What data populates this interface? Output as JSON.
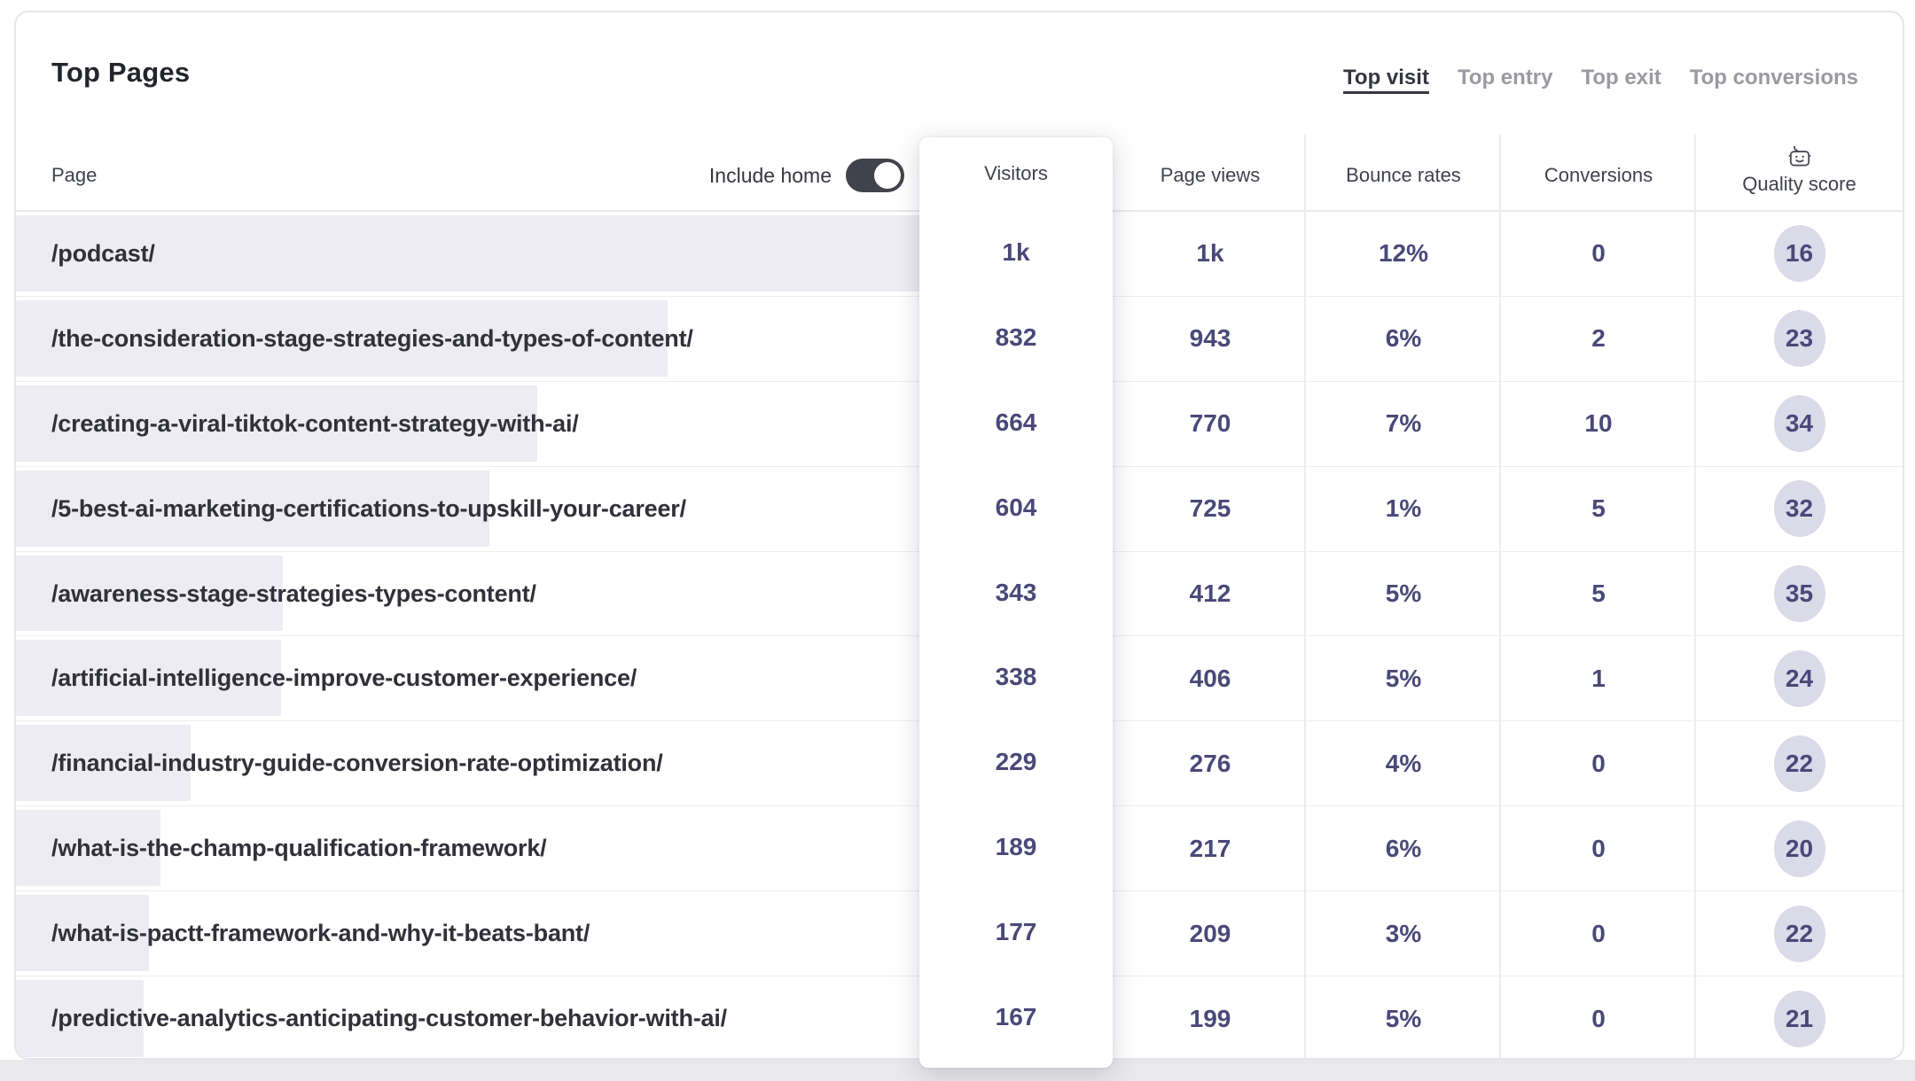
{
  "header": {
    "title": "Top Pages",
    "tabs": [
      {
        "label": "Top visit",
        "active": true
      },
      {
        "label": "Top entry",
        "active": false
      },
      {
        "label": "Top exit",
        "active": false
      },
      {
        "label": "Top conversions",
        "active": false
      }
    ]
  },
  "table": {
    "page_column_label": "Page",
    "include_home_label": "Include home",
    "include_home_toggle_state": "on",
    "columns": [
      "Visitors",
      "Page views",
      "Bounce rates",
      "Conversions",
      "Quality score"
    ],
    "quality_score_header_icon": "robot-icon",
    "rows": [
      {
        "page": "/podcast/",
        "visitors": "1k",
        "page_views": "1k",
        "bounce_rate": "12%",
        "conversions": "0",
        "quality_score": "16",
        "bar_pct": 1.0
      },
      {
        "page": "/the-consideration-stage-strategies-and-types-of-content/",
        "visitors": "832",
        "page_views": "943",
        "bounce_rate": "6%",
        "conversions": "2",
        "quality_score": "23",
        "bar_pct": 0.72
      },
      {
        "page": "/creating-a-viral-tiktok-content-strategy-with-ai/",
        "visitors": "664",
        "page_views": "770",
        "bounce_rate": "7%",
        "conversions": "10",
        "quality_score": "34",
        "bar_pct": 0.576
      },
      {
        "page": "/5-best-ai-marketing-certifications-to-upskill-your-career/",
        "visitors": "604",
        "page_views": "725",
        "bounce_rate": "1%",
        "conversions": "5",
        "quality_score": "32",
        "bar_pct": 0.523
      },
      {
        "page": "/awareness-stage-strategies-types-content/",
        "visitors": "343",
        "page_views": "412",
        "bounce_rate": "5%",
        "conversions": "5",
        "quality_score": "35",
        "bar_pct": 0.295
      },
      {
        "page": "/artificial-intelligence-improve-customer-experience/",
        "visitors": "338",
        "page_views": "406",
        "bounce_rate": "5%",
        "conversions": "1",
        "quality_score": "24",
        "bar_pct": 0.293
      },
      {
        "page": "/financial-industry-guide-conversion-rate-optimization/",
        "visitors": "229",
        "page_views": "276",
        "bounce_rate": "4%",
        "conversions": "0",
        "quality_score": "22",
        "bar_pct": 0.193
      },
      {
        "page": "/what-is-the-champ-qualification-framework/",
        "visitors": "189",
        "page_views": "217",
        "bounce_rate": "6%",
        "conversions": "0",
        "quality_score": "20",
        "bar_pct": 0.16
      },
      {
        "page": "/what-is-pactt-framework-and-why-it-beats-bant/",
        "visitors": "177",
        "page_views": "209",
        "bounce_rate": "3%",
        "conversions": "0",
        "quality_score": "22",
        "bar_pct": 0.147
      },
      {
        "page": "/predictive-analytics-anticipating-customer-behavior-with-ai/",
        "visitors": "167",
        "page_views": "199",
        "bounce_rate": "5%",
        "conversions": "0",
        "quality_score": "21",
        "bar_pct": 0.141
      }
    ]
  },
  "colors": {
    "value_text": "#4B4878",
    "badge_bg": "#DBDAE9",
    "bar_bg": "#ECECF2",
    "toggle_on_bg": "#41424C",
    "tab_active": "#34363F",
    "tab_inactive": "#9A9AA2",
    "card_border": "#E5E5EA",
    "row_divider": "#EEEEF1",
    "page_bg_strip": "#E9E9EB"
  }
}
